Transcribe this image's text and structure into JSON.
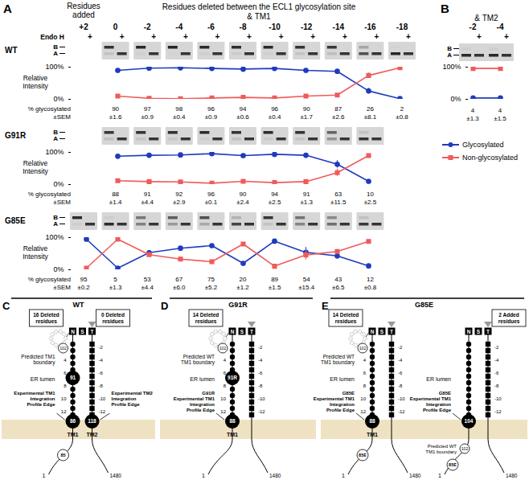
{
  "chart_data": [
    {
      "type": "line",
      "title": "WT",
      "categories": [
        "+2",
        "0",
        "-2",
        "-4",
        "-6",
        "-8",
        "-10",
        "-12",
        "-14",
        "-16",
        "-18"
      ],
      "series": [
        {
          "name": "Glycosylated",
          "color": "#1f3bbf",
          "marker": "circle",
          "values": [
            null,
            90,
            97,
            98,
            96,
            94,
            96,
            90,
            87,
            26,
            2
          ],
          "sem": [
            null,
            1.6,
            0.9,
            0.4,
            0.9,
            0.6,
            0.4,
            1.7,
            2.6,
            8.1,
            0.8
          ],
          "sem_labels": [
            null,
            "±1.6",
            "±0.9",
            "±0.4",
            "±0.9",
            "±0.6",
            "±0.4",
            "±1.7",
            "±2.6",
            "±8.1",
            "±0.8"
          ]
        },
        {
          "name": "Non-glycosylated",
          "color": "#ef5b5b",
          "marker": "square",
          "values": [
            null,
            10,
            3,
            2,
            4,
            6,
            4,
            10,
            13,
            74,
            98
          ],
          "sem": [
            null,
            1.6,
            0.9,
            0.4,
            0.9,
            0.6,
            0.4,
            1.7,
            2.6,
            8.1,
            0.8
          ]
        }
      ],
      "ylabel": "Relative Intensity",
      "ylim": [
        0,
        100
      ],
      "yticks": [
        {
          "value": 0,
          "label": "0%"
        },
        {
          "value": 100,
          "label": "100%"
        }
      ],
      "tick_labels": "y",
      "row_label": "% glycosylated",
      "sem_row_label": "±SEM"
    },
    {
      "type": "line",
      "title": "G91R",
      "categories": [
        "+2",
        "0",
        "-2",
        "-4",
        "-6",
        "-8",
        "-10",
        "-12",
        "-14",
        "-16",
        "-18"
      ],
      "series": [
        {
          "name": "Glycosylated",
          "color": "#1f3bbf",
          "marker": "circle",
          "values": [
            null,
            88,
            91,
            92,
            96,
            90,
            94,
            91,
            63,
            10,
            null
          ],
          "sem": [
            null,
            1.4,
            4.4,
            2.9,
            0.1,
            2.4,
            2.5,
            1.3,
            11.5,
            2.5,
            null
          ],
          "sem_labels": [
            null,
            "±1.4",
            "±4.4",
            "±2.9",
            "±0.1",
            "±2.4",
            "±2.5",
            "±1.3",
            "±11.5",
            "±2.5",
            null
          ]
        },
        {
          "name": "Non-glycosylated",
          "color": "#ef5b5b",
          "marker": "square",
          "values": [
            null,
            12,
            9,
            8,
            4,
            10,
            6,
            9,
            37,
            90,
            null
          ],
          "sem": [
            null,
            1.4,
            4.4,
            2.9,
            0.1,
            2.4,
            2.5,
            1.3,
            11.5,
            2.5,
            null
          ]
        }
      ],
      "ylabel": "Relative Intensity",
      "ylim": [
        0,
        100
      ],
      "yticks": [
        {
          "value": 0,
          "label": "0%"
        },
        {
          "value": 100,
          "label": "100%"
        }
      ],
      "tick_labels": "y",
      "row_label": "% glycosylated",
      "sem_row_label": "±SEM"
    },
    {
      "type": "line",
      "title": "G85E",
      "categories": [
        "+2",
        "0",
        "-2",
        "-4",
        "-6",
        "-8",
        "-10",
        "-12",
        "-14",
        "-16",
        "-18"
      ],
      "series": [
        {
          "name": "Glycosylated",
          "color": "#1f3bbf",
          "marker": "circle",
          "values": [
            95,
            5,
            53,
            67,
            75,
            20,
            89,
            54,
            43,
            12,
            null
          ],
          "sem": [
            0.2,
            1.3,
            4.4,
            6.0,
            5.2,
            1.2,
            1.5,
            15.4,
            6.5,
            0.8,
            null
          ],
          "sem_labels": [
            "±0.2",
            "±1.3",
            "±4.4",
            "±6.0",
            "±5.2",
            "±1.2",
            "±1.5",
            "±15.4",
            "±6.5",
            "±0.8",
            null
          ]
        },
        {
          "name": "Non-glycosylated",
          "color": "#ef5b5b",
          "marker": "square",
          "values": [
            5,
            95,
            47,
            33,
            25,
            80,
            11,
            46,
            57,
            88,
            null
          ],
          "sem": [
            0.2,
            1.3,
            4.4,
            6.0,
            5.2,
            1.2,
            1.5,
            15.4,
            6.5,
            0.8,
            null
          ]
        }
      ],
      "ylabel": "Relative Intensity",
      "ylim": [
        0,
        100
      ],
      "yticks": [
        {
          "value": 0,
          "label": "0%"
        },
        {
          "value": 100,
          "label": "100%"
        }
      ],
      "tick_labels": "y",
      "row_label": "% glycosylated",
      "sem_row_label": "±SEM"
    },
    {
      "type": "line",
      "categories": [
        "-2",
        "-4"
      ],
      "series": [
        {
          "name": "Glycosylated",
          "color": "#1f3bbf",
          "marker": "circle",
          "values": [
            4,
            4
          ],
          "sem": [
            1.3,
            1.5
          ],
          "sem_labels": [
            "±1.3",
            "±1.5"
          ]
        },
        {
          "name": "Non-glycosylated",
          "color": "#ef5b5b",
          "marker": "square",
          "values": [
            96,
            96
          ],
          "sem": [
            1.3,
            1.5
          ]
        }
      ],
      "ylim": [
        0,
        100
      ],
      "yticks": [
        {
          "value": 0,
          "label": "0%"
        },
        {
          "value": 100,
          "label": "100%"
        }
      ],
      "tick_labels": "y"
    }
  ],
  "figure": {
    "panel_A": {
      "letter": "A",
      "added_header": [
        "Residues",
        "added"
      ],
      "deleted_header": "Residues deleted between the ECL1 glycosylation site",
      "deleted_subheader": "& TM1",
      "endo_h_label": "Endo H",
      "endo_h_mark": "+",
      "band_labels": [
        "B",
        "A"
      ]
    },
    "panel_B": {
      "letter": "B",
      "subheader": "& TM2"
    },
    "diagrams": [
      {
        "letter": "C",
        "title": "WT",
        "units": [
          {
            "left_box": "16 Deleted residues",
            "right_box": "0 Deleted residues",
            "top": [
              "N",
              "S",
              "T"
            ],
            "boundary_label": "Predicted TM1 boundary",
            "loop_label": "102",
            "boundary_side": "lumen",
            "left_scale": [
              "2",
              "4",
              "6",
              "8",
              "10",
              "12"
            ],
            "right_scale": [
              "-2",
              "-4",
              "-6",
              "-8",
              "-10",
              "-12"
            ],
            "left_marks": [
              "91",
              "86"
            ],
            "right_mark": "118",
            "lumen_label": "ER lumen",
            "left_edge": "Experimental TM1 Integration Profile Edge",
            "right_edge": "Experimental TM2 Integration Profile Edge",
            "left_tm": "TM1",
            "right_tm": "TM2",
            "left_tail": [
              "85",
              "1"
            ],
            "right_tail": [
              "1480"
            ]
          }
        ]
      },
      {
        "letter": "D",
        "title": "G91R",
        "units": [
          {
            "left_box": "14 Deleted residues",
            "top": [
              "N",
              "S",
              "T"
            ],
            "boundary_label": "Predicted WT TM1 boundary",
            "loop_label": "102",
            "boundary_side": "lumen",
            "left_scale": [
              "2",
              "4",
              "6",
              "8",
              "10",
              "12"
            ],
            "right_scale": [
              "-2",
              "-4",
              "-6",
              "-8",
              "-10",
              "-12"
            ],
            "left_marks": [
              "91R",
              "88"
            ],
            "lumen_label": "ER lumen",
            "left_edge": "G91R Experimental TM1 Integration Profile Edge",
            "left_tm": "TM1",
            "left_tail": [
              "1"
            ],
            "right_tail": [
              "1480"
            ]
          }
        ]
      },
      {
        "letter": "E",
        "title": "G85E",
        "units": [
          {
            "left_box": "14 Deleted residues",
            "top": [
              "N",
              "S",
              "T"
            ],
            "boundary_label": "Predicted WT TM1 boundary",
            "loop_label": "102",
            "boundary_side": "lumen",
            "left_scale": [
              "2",
              "4",
              "6",
              "8",
              "10",
              "12"
            ],
            "right_scale": [
              "-2",
              "-4",
              "-6",
              "-8",
              "-10",
              "-12"
            ],
            "left_marks": [
              "88"
            ],
            "lumen_label": "ER lumen",
            "left_edge": "G85E Experimental TM1 Integration Profile Edge",
            "left_tm": "TM1",
            "left_tail": [
              "85E",
              "1"
            ],
            "right_tail": [
              "1480"
            ]
          },
          {
            "right_box": "2 Added residues",
            "top": [
              "N",
              "S",
              "T"
            ],
            "boundary_label": "Predicted WT TM1 boundary",
            "loop_label": "102",
            "boundary_side": "cytosol",
            "right_scale": [
              "-2",
              "-4",
              "-6",
              "-8",
              "-10",
              "-12"
            ],
            "left_marks": [
              "104"
            ],
            "lumen_label": "ER lumen",
            "left_edge": "G85E Experimental TM1 Integration Profile Edge",
            "left_tail": [
              "85E",
              "1"
            ],
            "right_tail": [
              "1480"
            ]
          }
        ]
      }
    ]
  }
}
